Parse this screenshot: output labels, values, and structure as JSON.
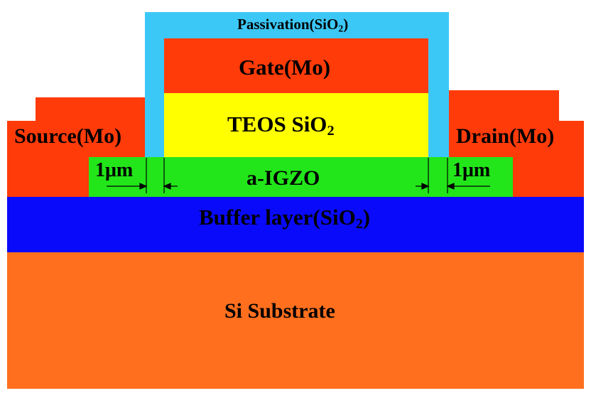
{
  "layers": {
    "substrate": {
      "label": "Si Substrate",
      "color": "#ff6f1e"
    },
    "buffer": {
      "label_prefix": "Buffer layer(SiO",
      "label_sub": "2",
      "label_suffix": ")",
      "color": "#0a0afa"
    },
    "channel": {
      "label": "a-IGZO",
      "color": "#22e61a"
    },
    "source": {
      "label": "Source(Mo)",
      "color": "#ff3b0a"
    },
    "drain": {
      "label": "Drain(Mo)",
      "color": "#ff3b0a"
    },
    "passivation": {
      "label_prefix": "Passivation(SiO",
      "label_sub": "2",
      "label_suffix": ")",
      "color": "#3cc8f6"
    },
    "gate": {
      "label": "Gate(Mo)",
      "color": "#ff3b0a"
    },
    "dielectric": {
      "label_prefix": "TEOS SiO",
      "label_sub": "2",
      "color": "#ffff00"
    }
  },
  "dimensions": {
    "left_offset": "1μm",
    "right_offset": "1μm"
  },
  "text_color": "#000000"
}
